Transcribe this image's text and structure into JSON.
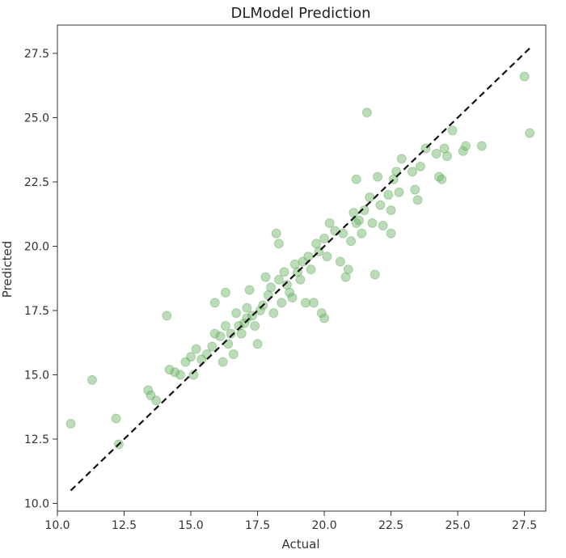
{
  "chart_data": {
    "type": "scatter",
    "title": "DLModel Prediction",
    "xlabel": "Actual",
    "ylabel": "Predicted",
    "xlim": [
      10.0,
      28.3
    ],
    "ylim": [
      9.7,
      28.6
    ],
    "xticks": [
      "10.0",
      "12.5",
      "15.0",
      "17.5",
      "20.0",
      "22.5",
      "25.0",
      "27.5"
    ],
    "yticks": [
      "10.0",
      "12.5",
      "15.0",
      "17.5",
      "20.0",
      "22.5",
      "25.0",
      "27.5"
    ],
    "grid": false,
    "marker_color": "#6ab163",
    "marker_alpha": 0.45,
    "reference_line": {
      "style": "dashed",
      "color": "#111111",
      "x": [
        10.5,
        27.7
      ],
      "y": [
        10.5,
        27.7
      ]
    },
    "points": [
      [
        10.5,
        13.1
      ],
      [
        11.3,
        14.8
      ],
      [
        12.2,
        13.3
      ],
      [
        12.3,
        12.3
      ],
      [
        13.4,
        14.4
      ],
      [
        13.5,
        14.2
      ],
      [
        13.7,
        14.0
      ],
      [
        14.1,
        17.3
      ],
      [
        14.2,
        15.2
      ],
      [
        14.4,
        15.1
      ],
      [
        14.6,
        15.0
      ],
      [
        14.8,
        15.5
      ],
      [
        15.0,
        15.7
      ],
      [
        15.1,
        15.0
      ],
      [
        15.2,
        16.0
      ],
      [
        15.4,
        15.6
      ],
      [
        15.6,
        15.8
      ],
      [
        15.8,
        16.1
      ],
      [
        15.9,
        16.6
      ],
      [
        15.9,
        17.8
      ],
      [
        16.1,
        16.5
      ],
      [
        16.2,
        15.5
      ],
      [
        16.3,
        18.2
      ],
      [
        16.3,
        16.9
      ],
      [
        16.4,
        16.2
      ],
      [
        16.5,
        16.6
      ],
      [
        16.6,
        15.8
      ],
      [
        16.7,
        17.4
      ],
      [
        16.8,
        16.9
      ],
      [
        16.9,
        16.6
      ],
      [
        17.0,
        17.0
      ],
      [
        17.1,
        17.6
      ],
      [
        17.1,
        17.2
      ],
      [
        17.2,
        18.3
      ],
      [
        17.3,
        17.3
      ],
      [
        17.4,
        16.9
      ],
      [
        17.5,
        16.2
      ],
      [
        17.6,
        17.5
      ],
      [
        17.7,
        17.7
      ],
      [
        17.8,
        18.8
      ],
      [
        17.9,
        18.1
      ],
      [
        18.0,
        18.4
      ],
      [
        18.1,
        17.4
      ],
      [
        18.2,
        20.5
      ],
      [
        18.3,
        18.7
      ],
      [
        18.3,
        20.1
      ],
      [
        18.4,
        17.8
      ],
      [
        18.5,
        19.0
      ],
      [
        18.6,
        18.5
      ],
      [
        18.7,
        18.2
      ],
      [
        18.8,
        18.0
      ],
      [
        18.9,
        19.3
      ],
      [
        19.0,
        19.0
      ],
      [
        19.1,
        18.7
      ],
      [
        19.2,
        19.4
      ],
      [
        19.3,
        17.8
      ],
      [
        19.4,
        19.6
      ],
      [
        19.5,
        19.1
      ],
      [
        19.6,
        17.8
      ],
      [
        19.7,
        20.1
      ],
      [
        19.8,
        19.8
      ],
      [
        19.9,
        17.4
      ],
      [
        20.0,
        17.2
      ],
      [
        20.0,
        20.3
      ],
      [
        20.1,
        19.6
      ],
      [
        20.2,
        20.9
      ],
      [
        20.4,
        20.6
      ],
      [
        20.6,
        19.4
      ],
      [
        20.7,
        20.5
      ],
      [
        20.8,
        18.8
      ],
      [
        20.9,
        19.1
      ],
      [
        21.0,
        20.2
      ],
      [
        21.1,
        21.3
      ],
      [
        21.2,
        20.9
      ],
      [
        21.2,
        22.6
      ],
      [
        21.3,
        21.0
      ],
      [
        21.4,
        20.5
      ],
      [
        21.5,
        21.4
      ],
      [
        21.6,
        25.2
      ],
      [
        21.7,
        21.9
      ],
      [
        21.8,
        20.9
      ],
      [
        21.9,
        18.9
      ],
      [
        22.0,
        22.7
      ],
      [
        22.1,
        21.6
      ],
      [
        22.2,
        20.8
      ],
      [
        22.4,
        22.0
      ],
      [
        22.5,
        21.4
      ],
      [
        22.5,
        20.5
      ],
      [
        22.6,
        22.6
      ],
      [
        22.7,
        22.9
      ],
      [
        22.8,
        22.1
      ],
      [
        22.9,
        23.4
      ],
      [
        23.3,
        22.9
      ],
      [
        23.4,
        22.2
      ],
      [
        23.5,
        21.8
      ],
      [
        23.6,
        23.1
      ],
      [
        23.8,
        23.8
      ],
      [
        24.2,
        23.6
      ],
      [
        24.3,
        22.7
      ],
      [
        24.4,
        22.6
      ],
      [
        24.5,
        23.8
      ],
      [
        24.6,
        23.5
      ],
      [
        24.8,
        24.5
      ],
      [
        25.2,
        23.7
      ],
      [
        25.3,
        23.9
      ],
      [
        25.9,
        23.9
      ],
      [
        27.5,
        26.6
      ],
      [
        27.7,
        24.4
      ]
    ]
  }
}
